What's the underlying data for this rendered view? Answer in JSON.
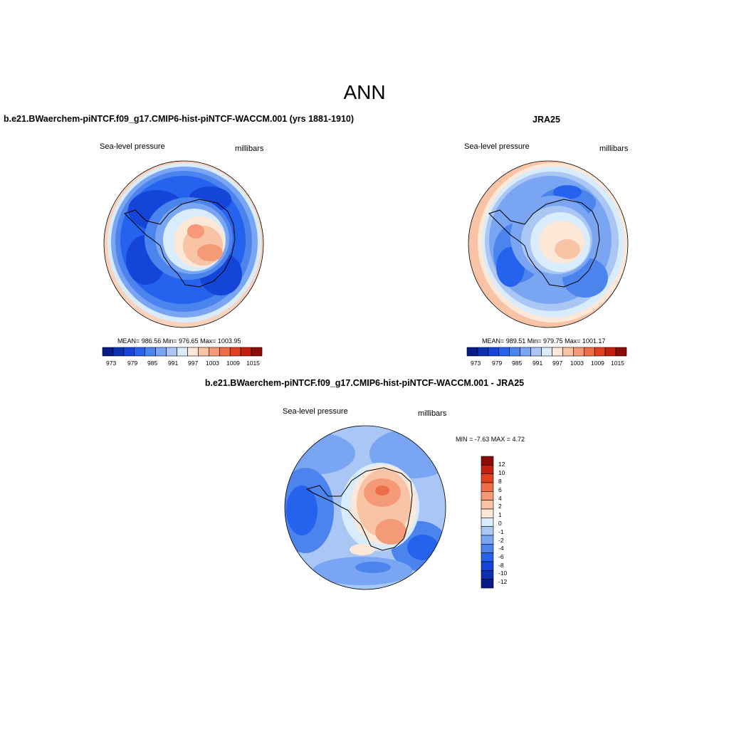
{
  "title": "ANN",
  "colors": {
    "abs_levels": [
      "#0a1a86",
      "#0f2fb3",
      "#1445d8",
      "#2563ee",
      "#4c84ee",
      "#7aa5f2",
      "#a9c6f5",
      "#d9ecfb",
      "#fde8d8",
      "#f9c4a6",
      "#f59a77",
      "#ee6e47",
      "#e0411f",
      "#c2210e",
      "#8b0c06"
    ],
    "diff_levels": [
      "#0a1a86",
      "#0f2fb3",
      "#1445d8",
      "#2563ee",
      "#4c84ee",
      "#7aa5f2",
      "#a9c6f5",
      "#d9ecfb",
      "#fde8d8",
      "#f9c4a6",
      "#f59a77",
      "#ee6e47",
      "#e0411f",
      "#c2210e",
      "#8b0c06"
    ]
  },
  "panels": [
    {
      "title": "b.e21.BWaerchem-piNTCF.f09_g17.CMIP6-hist-piNTCF-WACCM.001 (yrs 1881-1910)",
      "left_label": "Sea-level pressure",
      "right_label": "millibars",
      "stats": "MEAN= 986.56  Min= 976.65  Max= 1003.95",
      "colorbar_ticks": [
        "973",
        "979",
        "985",
        "991",
        "997",
        "1003",
        "1009",
        "1015"
      ]
    },
    {
      "title": "JRA25",
      "left_label": "Sea-level pressure",
      "right_label": "millibars",
      "stats": "MEAN= 989.51  Min= 979.75  Max= 1001.17",
      "colorbar_ticks": [
        "973",
        "979",
        "985",
        "991",
        "997",
        "1003",
        "1009",
        "1015"
      ]
    },
    {
      "title": "b.e21.BWaerchem-piNTCF.f09_g17.CMIP6-hist-piNTCF-WACCM.001 - JRA25",
      "left_label": "Sea-level pressure",
      "right_label": "millibars",
      "stats": "MIN =  -7.63 MAX =   4.72",
      "colorbar_ticks": [
        "12",
        "10",
        "8",
        "6",
        "4",
        "2",
        "1",
        "0",
        "-1",
        "-2",
        "-4",
        "-6",
        "-8",
        "-10",
        "-12"
      ]
    }
  ]
}
